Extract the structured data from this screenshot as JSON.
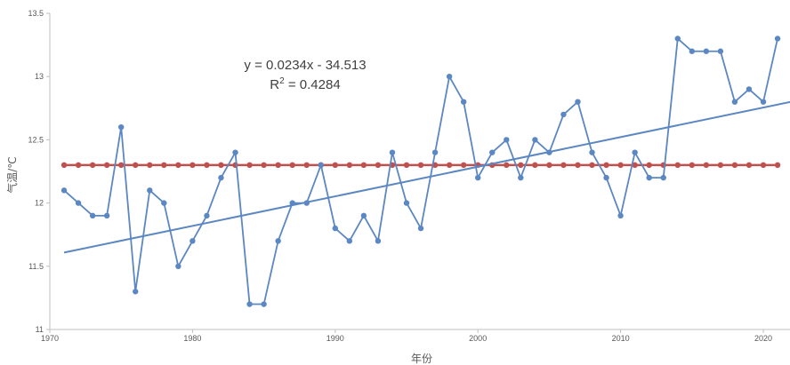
{
  "chart_data": {
    "type": "line",
    "xlabel": "年份",
    "ylabel": "气温/℃",
    "xlim": [
      1970,
      2021
    ],
    "ylim": [
      11,
      13.5
    ],
    "x_ticks": [
      "1970",
      "1980",
      "1990",
      "2000",
      "2010",
      "2020"
    ],
    "y_ticks": [
      "11",
      "11.5",
      "12",
      "12.5",
      "13",
      "13.5"
    ],
    "grid": false,
    "legend": "none",
    "annotation": {
      "equation": "y = 0.0234x - 34.513",
      "r2_prefix": "R",
      "r2_sup": "2",
      "r2_suffix": " = 0.4284"
    },
    "series": [
      {
        "role": "annual",
        "color": "#5b87c2",
        "x": [
          1971,
          1972,
          1973,
          1974,
          1975,
          1976,
          1977,
          1978,
          1979,
          1980,
          1981,
          1982,
          1983,
          1984,
          1985,
          1986,
          1987,
          1988,
          1989,
          1990,
          1991,
          1992,
          1993,
          1994,
          1995,
          1996,
          1997,
          1998,
          1999,
          2000,
          2001,
          2002,
          2003,
          2004,
          2005,
          2006,
          2007,
          2008,
          2009,
          2010,
          2011,
          2012,
          2013,
          2014,
          2015,
          2016,
          2017,
          2018,
          2019,
          2020,
          2021
        ],
        "y": [
          12.1,
          12.0,
          11.9,
          11.9,
          12.6,
          11.3,
          12.1,
          12.0,
          11.5,
          11.7,
          11.9,
          12.2,
          12.4,
          11.2,
          11.2,
          11.7,
          12.0,
          12.0,
          12.3,
          11.8,
          11.7,
          11.9,
          11.7,
          12.4,
          12.0,
          11.8,
          12.4,
          13.0,
          12.8,
          12.2,
          12.4,
          12.5,
          12.2,
          12.5,
          12.4,
          12.7,
          12.8,
          12.4,
          12.2,
          11.9,
          12.4,
          12.2,
          12.2,
          13.3,
          13.2,
          13.2,
          13.2,
          12.8,
          12.9,
          12.8,
          13.3
        ]
      },
      {
        "role": "mean",
        "color": "#c0504d",
        "x": [
          1971,
          1972,
          1973,
          1974,
          1975,
          1976,
          1977,
          1978,
          1979,
          1980,
          1981,
          1982,
          1983,
          1984,
          1985,
          1986,
          1987,
          1988,
          1989,
          1990,
          1991,
          1992,
          1993,
          1994,
          1995,
          1996,
          1997,
          1998,
          1999,
          2000,
          2001,
          2002,
          2003,
          2004,
          2005,
          2006,
          2007,
          2008,
          2009,
          2010,
          2011,
          2012,
          2013,
          2014,
          2015,
          2016,
          2017,
          2018,
          2019,
          2020,
          2021
        ],
        "value": 12.3
      },
      {
        "role": "trend",
        "color": "#5b87c2",
        "slope": 0.0234,
        "intercept": -34.513,
        "x_range": [
          1971,
          2022
        ]
      }
    ]
  }
}
